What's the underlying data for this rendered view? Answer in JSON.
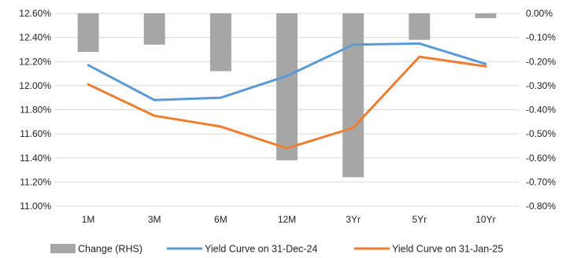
{
  "chart_data": {
    "type": "bar+line",
    "categories": [
      "1M",
      "3M",
      "6M",
      "12M",
      "3Yr",
      "5Yr",
      "10Yr"
    ],
    "left_axis": {
      "range": [
        11.0,
        12.6
      ],
      "step": 0.2,
      "tick_labels": [
        "11.00%",
        "11.20%",
        "11.40%",
        "11.60%",
        "11.80%",
        "12.00%",
        "12.20%",
        "12.40%",
        "12.60%"
      ]
    },
    "right_axis": {
      "range": [
        -0.8,
        0.0
      ],
      "step": 0.1,
      "tick_labels": [
        "-0.80%",
        "-0.70%",
        "-0.60%",
        "-0.50%",
        "-0.40%",
        "-0.30%",
        "-0.20%",
        "-0.10%",
        "0.00%"
      ]
    },
    "grid": true,
    "legend_position": "bottom",
    "series": [
      {
        "name": "Change (RHS)",
        "type": "bar",
        "axis": "right",
        "color": "#a6a6a6",
        "values": [
          -0.16,
          -0.13,
          -0.24,
          -0.61,
          -0.68,
          -0.11,
          -0.02
        ]
      },
      {
        "name": "Yield Curve on 31-Dec-24",
        "type": "line",
        "axis": "left",
        "color": "#5b9bd5",
        "values": [
          12.17,
          11.88,
          11.9,
          12.08,
          12.34,
          12.35,
          12.18
        ]
      },
      {
        "name": "Yield Curve on 31-Jan-25",
        "type": "line",
        "axis": "left",
        "color": "#ed7d31",
        "values": [
          12.01,
          11.75,
          11.66,
          11.48,
          11.65,
          12.24,
          12.16
        ]
      }
    ]
  }
}
